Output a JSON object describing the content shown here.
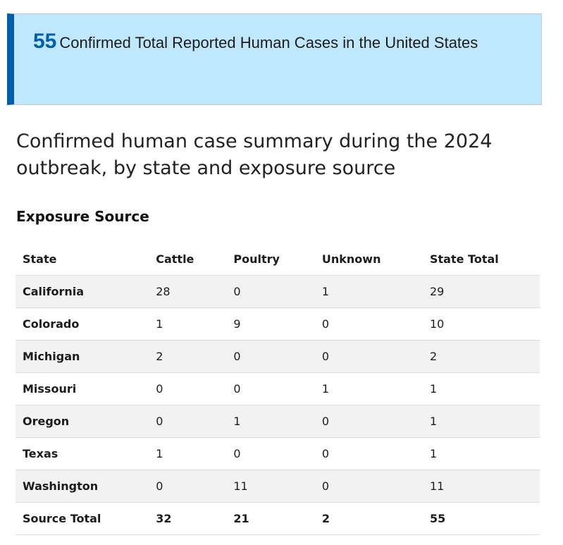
{
  "callout": {
    "count": "55",
    "text": "Confirmed Total Reported Human Cases in the United States",
    "accent_color": "#005eaa",
    "background_color": "#bfe7fd"
  },
  "heading": "Confirmed human case summary during the 2024 outbreak, by state and exposure source",
  "subheading": "Exposure Source",
  "table": {
    "columns": [
      "State",
      "Cattle",
      "Poultry",
      "Unknown",
      "State Total"
    ],
    "rows": [
      [
        "California",
        "28",
        "0",
        "1",
        "29"
      ],
      [
        "Colorado",
        "1",
        "9",
        "0",
        "10"
      ],
      [
        "Michigan",
        "2",
        "0",
        "0",
        "2"
      ],
      [
        "Missouri",
        "0",
        "0",
        "1",
        "1"
      ],
      [
        "Oregon",
        "0",
        "1",
        "0",
        "1"
      ],
      [
        "Texas",
        "1",
        "0",
        "0",
        "1"
      ],
      [
        "Washington",
        "0",
        "11",
        "0",
        "11"
      ]
    ],
    "total": [
      "Source Total",
      "32",
      "21",
      "2",
      "55"
    ]
  }
}
